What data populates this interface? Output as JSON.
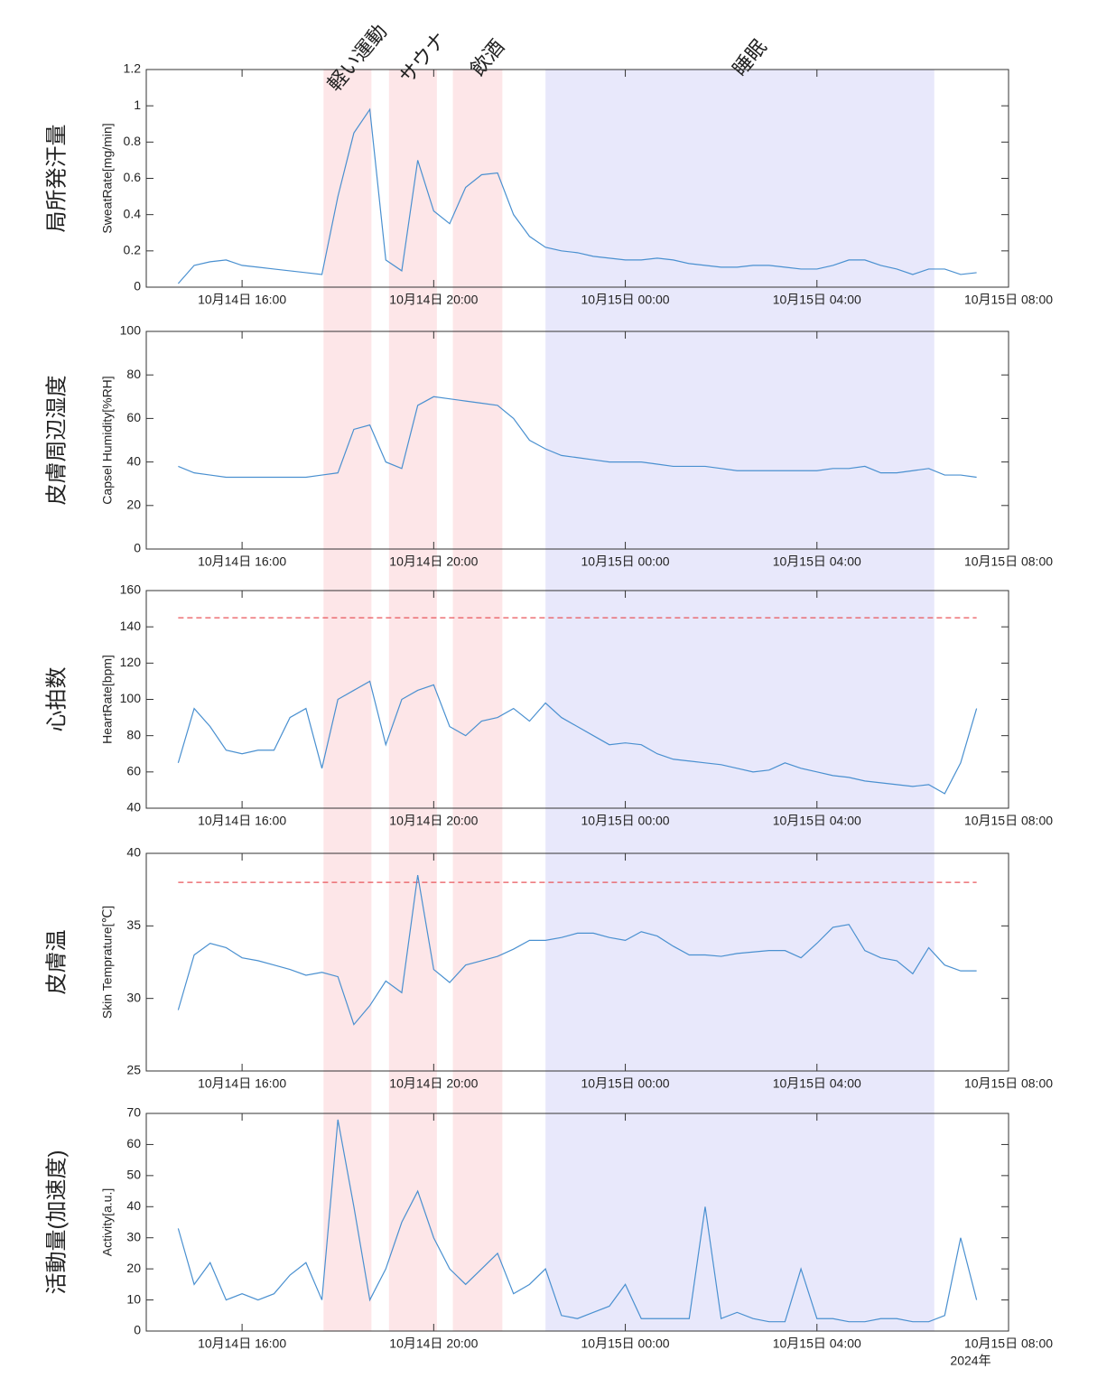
{
  "x": [
    "2024-10-14 14:40",
    "2024-10-14 15:00",
    "2024-10-14 15:20",
    "2024-10-14 15:40",
    "2024-10-14 16:00",
    "2024-10-14 16:20",
    "2024-10-14 16:40",
    "2024-10-14 17:00",
    "2024-10-14 17:20",
    "2024-10-14 17:40",
    "2024-10-14 18:00",
    "2024-10-14 18:20",
    "2024-10-14 18:40",
    "2024-10-14 19:00",
    "2024-10-14 19:20",
    "2024-10-14 19:40",
    "2024-10-14 20:00",
    "2024-10-14 20:20",
    "2024-10-14 20:40",
    "2024-10-14 21:00",
    "2024-10-14 21:20",
    "2024-10-14 21:40",
    "2024-10-14 22:00",
    "2024-10-14 22:20",
    "2024-10-14 22:40",
    "2024-10-14 23:00",
    "2024-10-14 23:20",
    "2024-10-14 23:40",
    "2024-10-15 00:00",
    "2024-10-15 00:20",
    "2024-10-15 00:40",
    "2024-10-15 01:00",
    "2024-10-15 01:20",
    "2024-10-15 01:40",
    "2024-10-15 02:00",
    "2024-10-15 02:20",
    "2024-10-15 02:40",
    "2024-10-15 03:00",
    "2024-10-15 03:20",
    "2024-10-15 03:40",
    "2024-10-15 04:00",
    "2024-10-15 04:20",
    "2024-10-15 04:40",
    "2024-10-15 05:00",
    "2024-10-15 05:20",
    "2024-10-15 05:40",
    "2024-10-15 06:00",
    "2024-10-15 06:20",
    "2024-10-15 06:40",
    "2024-10-15 07:00",
    "2024-10-15 07:20"
  ],
  "xlim": [
    "2024-10-14 14:00",
    "2024-10-15 08:00"
  ],
  "xticks": [
    {
      "value": "2024-10-14 16:00",
      "label": "10月14日 16:00"
    },
    {
      "value": "2024-10-14 20:00",
      "label": "10月14日 20:00"
    },
    {
      "value": "2024-10-15 00:00",
      "label": "10月15日 00:00"
    },
    {
      "value": "2024-10-15 04:00",
      "label": "10月15日 04:00"
    },
    {
      "value": "2024-10-15 08:00",
      "label": "10月15日 08:00"
    }
  ],
  "x_year_label": "2024年",
  "shaded_regions": [
    {
      "label": "軽い運動",
      "start": "2024-10-14 17:42",
      "end": "2024-10-14 18:42",
      "color": "#fde6e8"
    },
    {
      "label": "サウナ",
      "start": "2024-10-14 19:04",
      "end": "2024-10-14 20:04",
      "color": "#fde6e8"
    },
    {
      "label": "飲酒",
      "start": "2024-10-14 20:24",
      "end": "2024-10-14 21:26",
      "color": "#fde6e8"
    },
    {
      "label": "睡眠",
      "start": "2024-10-14 22:20",
      "end": "2024-10-15 06:27",
      "color": "#e8e8fb"
    }
  ],
  "chart_data": [
    {
      "type": "line",
      "row_label": "局所発汗量",
      "ylabel": "SweatRate[mg/min]",
      "color": "#4a90d0",
      "ylim": [
        0,
        1.2
      ],
      "yticks": [
        0,
        0.2,
        0.4,
        0.6,
        0.8,
        1,
        1.2
      ],
      "values": [
        0.02,
        0.12,
        0.14,
        0.15,
        0.12,
        0.11,
        0.1,
        0.09,
        0.08,
        0.07,
        0.5,
        0.85,
        0.98,
        0.15,
        0.09,
        0.7,
        0.42,
        0.35,
        0.55,
        0.62,
        0.63,
        0.4,
        0.28,
        0.22,
        0.2,
        0.19,
        0.17,
        0.16,
        0.15,
        0.15,
        0.16,
        0.15,
        0.13,
        0.12,
        0.11,
        0.11,
        0.12,
        0.12,
        0.11,
        0.1,
        0.1,
        0.12,
        0.15,
        0.15,
        0.12,
        0.1,
        0.07,
        0.1,
        0.1,
        0.07,
        0.08
      ]
    },
    {
      "type": "line",
      "row_label": "皮膚周辺湿度",
      "ylabel": "Capsel Humidity[%RH]",
      "color": "#4a90d0",
      "ylim": [
        0,
        100
      ],
      "yticks": [
        0,
        20,
        40,
        60,
        80,
        100
      ],
      "values": [
        38,
        35,
        34,
        33,
        33,
        33,
        33,
        33,
        33,
        34,
        35,
        55,
        57,
        40,
        37,
        66,
        70,
        69,
        68,
        67,
        66,
        60,
        50,
        46,
        43,
        42,
        41,
        40,
        40,
        40,
        39,
        38,
        38,
        38,
        37,
        36,
        36,
        36,
        36,
        36,
        36,
        37,
        37,
        38,
        35,
        35,
        36,
        37,
        34,
        34,
        33
      ]
    },
    {
      "type": "line",
      "row_label": "心拍数",
      "ylabel": "HeartRate[bpm]",
      "color": "#4a90d0",
      "ylim": [
        40,
        160
      ],
      "yticks": [
        40,
        60,
        80,
        100,
        120,
        140,
        160
      ],
      "threshold": 145,
      "threshold_color": "#e8555a",
      "values": [
        65,
        95,
        85,
        72,
        70,
        72,
        72,
        90,
        95,
        62,
        100,
        105,
        110,
        75,
        100,
        105,
        108,
        85,
        80,
        88,
        90,
        95,
        88,
        98,
        90,
        85,
        80,
        75,
        76,
        75,
        70,
        67,
        66,
        65,
        64,
        62,
        60,
        61,
        65,
        62,
        60,
        58,
        57,
        55,
        54,
        53,
        52,
        53,
        48,
        65,
        95
      ]
    },
    {
      "type": "line",
      "row_label": "皮膚温",
      "ylabel": "Skin Temprature[℃]",
      "color": "#4a90d0",
      "ylim": [
        25,
        40
      ],
      "yticks": [
        25,
        30,
        35,
        40
      ],
      "threshold": 38,
      "threshold_color": "#e8555a",
      "values": [
        29.2,
        33,
        33.8,
        33.5,
        32.8,
        32.6,
        32.3,
        32,
        31.6,
        31.8,
        31.5,
        28.2,
        29.5,
        31.2,
        30.4,
        38.5,
        32,
        31.1,
        32.3,
        32.6,
        32.9,
        33.4,
        34,
        34,
        34.2,
        34.5,
        34.5,
        34.2,
        34,
        34.6,
        34.3,
        33.6,
        33,
        33,
        32.9,
        33.1,
        33.2,
        33.3,
        33.3,
        32.8,
        33.8,
        34.9,
        35.1,
        33.3,
        32.8,
        32.6,
        31.7,
        33.5,
        32.3,
        31.9,
        31.9
      ]
    },
    {
      "type": "line",
      "row_label": "活動量(加速度)",
      "ylabel": "Activity[a.u.]",
      "color": "#4a90d0",
      "ylim": [
        0,
        70
      ],
      "yticks": [
        0,
        10,
        20,
        30,
        40,
        50,
        60,
        70
      ],
      "values": [
        33,
        15,
        22,
        10,
        12,
        10,
        12,
        18,
        22,
        10,
        68,
        40,
        10,
        20,
        35,
        45,
        30,
        20,
        15,
        20,
        25,
        12,
        15,
        20,
        5,
        4,
        6,
        8,
        15,
        4,
        4,
        4,
        4,
        40,
        4,
        6,
        4,
        3,
        3,
        20,
        4,
        4,
        3,
        3,
        4,
        4,
        3,
        3,
        5,
        30,
        10
      ]
    }
  ]
}
